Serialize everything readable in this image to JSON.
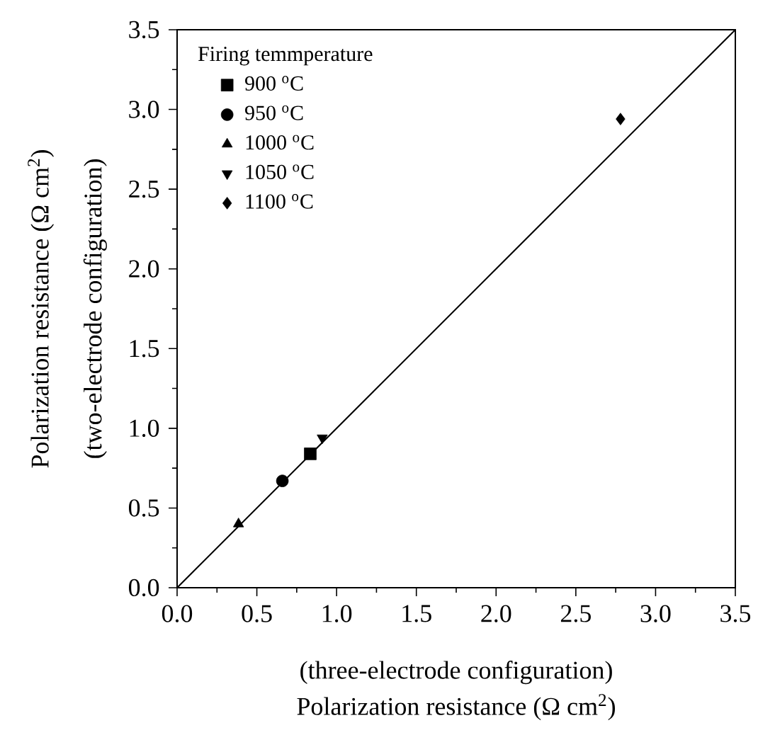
{
  "chart_data": {
    "type": "scatter",
    "xlabel": "Polarization resistance (Ω cm$^{2}$)",
    "ylabel": "Polarization resistance (Ω cm$^{2}$)",
    "annotations": [
      "(three-electrode configuration)",
      "(two-electrode configuration)"
    ],
    "legend_title": "Firing temmperature",
    "legend": "top left",
    "xlim": [
      0,
      3.5
    ],
    "ylim": [
      0,
      3.5
    ],
    "xticks": [
      {
        "value": 0,
        "label": "0.0"
      },
      0.5,
      {
        "value": 1,
        "label": "1.0"
      },
      1.5,
      {
        "value": 2,
        "label": "2.0"
      },
      2.5,
      {
        "value": 3,
        "label": "3.0"
      },
      3.5
    ],
    "yticks": [
      {
        "value": 0,
        "label": "0.0"
      },
      0.5,
      {
        "value": 1,
        "label": "1.0"
      },
      1.5,
      {
        "value": 2,
        "label": "2.0"
      },
      2.5,
      {
        "value": 3,
        "label": "3.0"
      },
      3.5
    ],
    "grid": false,
    "series": [
      {
        "name": "900 $^{o}$C",
        "color": "#000000",
        "marker": "square",
        "x": [
          0.835
        ],
        "values": [
          0.84
        ]
      },
      {
        "name": "950 $^{o}$C",
        "color": "#000000",
        "marker": "circle",
        "x": [
          0.66
        ],
        "values": [
          0.67
        ]
      },
      {
        "name": "1000 $^{o}$C",
        "color": "#000000",
        "marker": "triangle",
        "x": [
          0.385
        ],
        "values": [
          0.4
        ]
      },
      {
        "name": "1050 $^{o}$C",
        "color": "#000000",
        "marker": "triangle-down",
        "x": [
          0.91
        ],
        "values": [
          0.94
        ]
      },
      {
        "name": "1100 $^{o}$C",
        "color": "#000000",
        "marker": "diamond",
        "x": [
          2.78
        ],
        "values": [
          2.94
        ]
      },
      {
        "type": "line",
        "color": "#000000",
        "marker": "none",
        "line_style": "solid",
        "x": [
          0,
          3.5
        ],
        "values": [
          0,
          3.5
        ]
      }
    ]
  }
}
